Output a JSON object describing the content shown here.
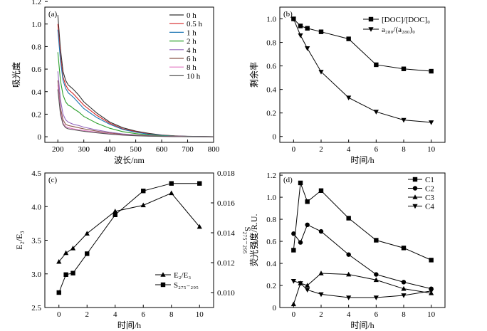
{
  "chart_data": [
    {
      "type": "line",
      "panel_label": "(a)",
      "xlabel": "波长/nm",
      "ylabel": "吸光度",
      "xlim": [
        150,
        800
      ],
      "ylim": [
        -0.05,
        1.15
      ],
      "xticks": [
        "200",
        "300",
        "400",
        "500",
        "600",
        "700",
        "800"
      ],
      "yticks": [
        "0",
        "0.2",
        "0.4",
        "0.6",
        "0.8",
        "1.0",
        "1.2"
      ],
      "legend_position": "top-right",
      "x": [
        200,
        210,
        220,
        230,
        240,
        250,
        260,
        280,
        300,
        350,
        400,
        450,
        500,
        550,
        600,
        650,
        700,
        800
      ],
      "series": [
        {
          "name": "0 h",
          "color": "#333333",
          "values": [
            1.08,
            0.78,
            0.58,
            0.5,
            0.46,
            0.44,
            0.42,
            0.37,
            0.31,
            0.21,
            0.13,
            0.08,
            0.05,
            0.03,
            0.015,
            0.008,
            0.004,
            0.0
          ]
        },
        {
          "name": "0.5 h",
          "color": "#d62728",
          "values": [
            1.0,
            0.72,
            0.53,
            0.46,
            0.42,
            0.4,
            0.38,
            0.33,
            0.28,
            0.19,
            0.12,
            0.07,
            0.045,
            0.025,
            0.013,
            0.007,
            0.003,
            0.0
          ]
        },
        {
          "name": "1 h",
          "color": "#1f77b4",
          "values": [
            0.95,
            0.68,
            0.5,
            0.43,
            0.39,
            0.37,
            0.35,
            0.3,
            0.25,
            0.17,
            0.11,
            0.065,
            0.04,
            0.022,
            0.012,
            0.006,
            0.003,
            0.0
          ]
        },
        {
          "name": "2 h",
          "color": "#2ca02c",
          "values": [
            0.75,
            0.5,
            0.37,
            0.31,
            0.28,
            0.27,
            0.25,
            0.22,
            0.18,
            0.12,
            0.075,
            0.045,
            0.028,
            0.016,
            0.008,
            0.004,
            0.002,
            0.0
          ]
        },
        {
          "name": "4 h",
          "color": "#9467bd",
          "values": [
            0.58,
            0.33,
            0.2,
            0.15,
            0.13,
            0.12,
            0.11,
            0.1,
            0.085,
            0.06,
            0.04,
            0.025,
            0.016,
            0.01,
            0.005,
            0.003,
            0.001,
            0.0
          ]
        },
        {
          "name": "6 h",
          "color": "#8c564b",
          "values": [
            0.5,
            0.26,
            0.15,
            0.11,
            0.1,
            0.095,
            0.09,
            0.08,
            0.07,
            0.05,
            0.033,
            0.02,
            0.013,
            0.008,
            0.004,
            0.002,
            0.001,
            0.0
          ]
        },
        {
          "name": "8 h",
          "color": "#e377c2",
          "values": [
            0.46,
            0.22,
            0.12,
            0.09,
            0.08,
            0.075,
            0.07,
            0.062,
            0.055,
            0.04,
            0.026,
            0.016,
            0.01,
            0.006,
            0.003,
            0.002,
            0.001,
            0.0
          ]
        },
        {
          "name": "10 h",
          "color": "#555555",
          "values": [
            0.42,
            0.2,
            0.11,
            0.08,
            0.07,
            0.066,
            0.062,
            0.055,
            0.048,
            0.035,
            0.023,
            0.014,
            0.009,
            0.005,
            0.003,
            0.001,
            0.0,
            0.0
          ]
        }
      ]
    },
    {
      "type": "line",
      "panel_label": "(b)",
      "xlabel": "时间/h",
      "ylabel": "剩余率",
      "xlim": [
        -1,
        11
      ],
      "ylim": [
        -0.05,
        1.1
      ],
      "xticks": [
        "0",
        "2",
        "4",
        "6",
        "8",
        "10"
      ],
      "yticks": [
        "0",
        "0.2",
        "0.4",
        "0.6",
        "0.8",
        "1.0"
      ],
      "legend_position": "top-right",
      "x": [
        0,
        0.5,
        1,
        2,
        4,
        6,
        8,
        10
      ],
      "series": [
        {
          "name": "[DOC]/[DOC]₀",
          "marker": "square",
          "values": [
            1.0,
            0.94,
            0.92,
            0.89,
            0.83,
            0.61,
            0.575,
            0.555
          ]
        },
        {
          "name": "a₂₈₀/(a₂₈₀)₀",
          "marker": "triangle-down",
          "values": [
            1.0,
            0.86,
            0.75,
            0.55,
            0.33,
            0.21,
            0.14,
            0.12
          ]
        }
      ]
    },
    {
      "type": "line",
      "panel_label": "(c)",
      "xlabel": "时间/h",
      "ylabel": "E₂/E₃",
      "y2label": "S₂₇₅₋₂₉₅",
      "xlim": [
        -1,
        11
      ],
      "ylim": [
        2.5,
        4.5
      ],
      "y2lim": [
        0.009,
        0.018
      ],
      "xticks": [
        "0",
        "2",
        "4",
        "6",
        "8",
        "10"
      ],
      "yticks": [
        "2.5",
        "3.0",
        "3.5",
        "4.0",
        "4.5"
      ],
      "y2ticks": [
        "0.010",
        "0.012",
        "0.014",
        "0.016",
        "0.018"
      ],
      "legend_position": "bottom-right",
      "x": [
        0,
        0.5,
        1,
        2,
        4,
        6,
        8,
        10
      ],
      "series": [
        {
          "name": "E₂/E₃",
          "marker": "triangle-up",
          "axis": "left",
          "values": [
            3.18,
            3.31,
            3.38,
            3.6,
            3.93,
            4.02,
            4.2,
            3.7
          ]
        },
        {
          "name": "S₂₇₅₋₂₉₅",
          "marker": "square",
          "axis": "right",
          "values": [
            0.01,
            0.0112,
            0.0113,
            0.0126,
            0.0152,
            0.0168,
            0.0173,
            0.0173
          ]
        }
      ]
    },
    {
      "type": "line",
      "panel_label": "(d)",
      "xlabel": "时间/h",
      "ylabel": "荧光强度/R.U.",
      "xlim": [
        -1,
        11
      ],
      "ylim": [
        0,
        1.22
      ],
      "xticks": [
        "0",
        "2",
        "4",
        "6",
        "8",
        "10"
      ],
      "yticks": [
        "0",
        "0.2",
        "0.4",
        "0.6",
        "0.8",
        "1.0",
        "1.2"
      ],
      "legend_position": "top-right",
      "x": [
        0,
        0.5,
        1,
        2,
        4,
        6,
        8,
        10
      ],
      "series": [
        {
          "name": "C1",
          "marker": "square",
          "values": [
            0.52,
            1.13,
            0.96,
            1.06,
            0.81,
            0.61,
            0.54,
            0.43
          ]
        },
        {
          "name": "C2",
          "marker": "circle",
          "values": [
            0.67,
            0.59,
            0.75,
            0.69,
            0.48,
            0.3,
            0.23,
            0.17
          ]
        },
        {
          "name": "C3",
          "marker": "triangle-up",
          "values": [
            0.03,
            0.22,
            0.2,
            0.31,
            0.3,
            0.25,
            0.17,
            0.13
          ]
        },
        {
          "name": "C4",
          "marker": "triangle-down",
          "values": [
            0.24,
            0.22,
            0.16,
            0.12,
            0.09,
            0.09,
            0.11,
            0.15
          ]
        }
      ]
    }
  ]
}
